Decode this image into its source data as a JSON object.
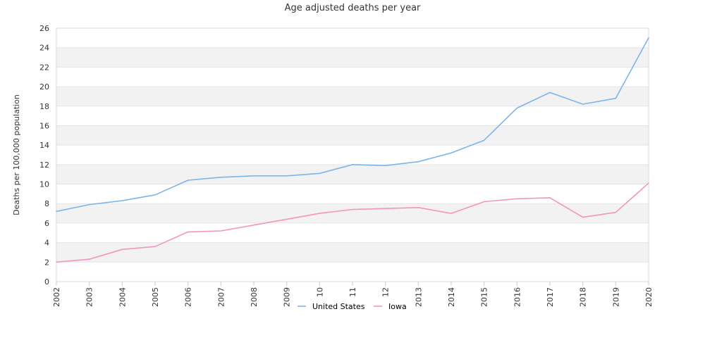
{
  "chart_data": {
    "type": "line",
    "title": "Age adjusted deaths per year",
    "xlabel": "",
    "ylabel": "Deaths per 100,000 population",
    "categories": [
      "2002",
      "2003",
      "2004",
      "2005",
      "2006",
      "2007",
      "2008",
      "2009",
      "10",
      "11",
      "12",
      "2013",
      "2014",
      "2015",
      "2016",
      "2017",
      "2018",
      "2019",
      "2020"
    ],
    "ylim": [
      0,
      26
    ],
    "yticks": [
      0,
      2,
      4,
      6,
      8,
      10,
      12,
      14,
      16,
      18,
      20,
      22,
      24,
      26
    ],
    "grid": true,
    "legend_position": "bottom",
    "series": [
      {
        "name": "United States",
        "color": "#7cb5ec",
        "values": [
          7.2,
          7.9,
          8.3,
          8.9,
          10.4,
          10.7,
          10.85,
          10.85,
          11.1,
          12.0,
          11.9,
          12.3,
          13.2,
          14.5,
          17.8,
          19.4,
          18.2,
          18.8,
          25.0
        ]
      },
      {
        "name": "Iowa",
        "color": "#f494c0",
        "values": [
          2.0,
          2.3,
          3.3,
          3.6,
          5.1,
          5.2,
          5.8,
          6.4,
          7.0,
          7.4,
          7.5,
          7.6,
          7.0,
          8.2,
          8.5,
          8.6,
          6.6,
          7.1,
          10.1
        ]
      }
    ]
  }
}
